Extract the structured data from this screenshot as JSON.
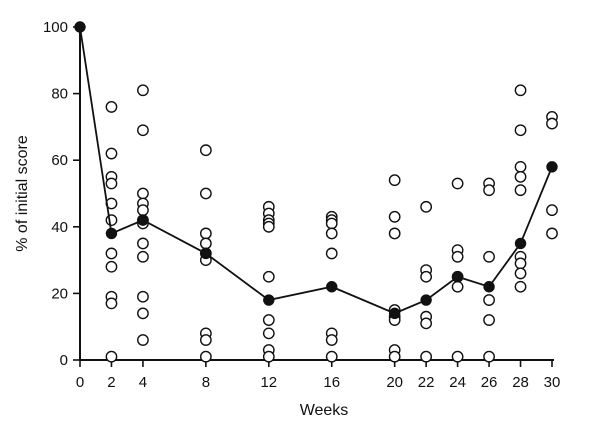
{
  "chart_data": {
    "type": "scatter",
    "xlabel": "Weeks",
    "ylabel": "% of initial score",
    "xlim": [
      0,
      30
    ],
    "ylim": [
      0,
      100
    ],
    "x_ticks": [
      0,
      2,
      4,
      8,
      12,
      16,
      20,
      22,
      24,
      26,
      28,
      30
    ],
    "y_ticks": [
      0,
      20,
      40,
      60,
      80,
      100
    ],
    "grid": false,
    "legend": "none",
    "series": [
      {
        "values": [
          {
            "x": 2,
            "y": [
              76,
              62,
              55,
              53,
              47,
              42,
              32,
              28,
              19,
              17,
              1
            ]
          },
          {
            "x": 4,
            "y": [
              81,
              69,
              50,
              47,
              45,
              42,
              41,
              35,
              31,
              19,
              14,
              6
            ]
          },
          {
            "x": 8,
            "y": [
              63,
              50,
              38,
              35,
              32,
              30,
              8,
              6,
              1
            ]
          },
          {
            "x": 12,
            "y": [
              46,
              44,
              42,
              41,
              40,
              25,
              12,
              8,
              3,
              1
            ]
          },
          {
            "x": 16,
            "y": [
              43,
              42,
              41,
              38,
              32,
              8,
              6,
              1
            ]
          },
          {
            "x": 20,
            "y": [
              54,
              43,
              38,
              15,
              13,
              12,
              3,
              1
            ]
          },
          {
            "x": 22,
            "y": [
              46,
              27,
              25,
              13,
              11,
              1
            ]
          },
          {
            "x": 24,
            "y": [
              53,
              33,
              31,
              25,
              22,
              1
            ]
          },
          {
            "x": 26,
            "y": [
              53,
              51,
              31,
              18,
              12,
              1
            ]
          },
          {
            "x": 28,
            "y": [
              81,
              69,
              58,
              55,
              51,
              31,
              29,
              26,
              22
            ]
          },
          {
            "x": 30,
            "y": [
              73,
              71,
              45,
              38
            ]
          }
        ]
      },
      {
        "values": [
          {
            "x": 0,
            "y": 100
          },
          {
            "x": 2,
            "y": 38
          },
          {
            "x": 4,
            "y": 42
          },
          {
            "x": 8,
            "y": 32
          },
          {
            "x": 12,
            "y": 18
          },
          {
            "x": 16,
            "y": 22
          },
          {
            "x": 20,
            "y": 14
          },
          {
            "x": 22,
            "y": 18
          },
          {
            "x": 24,
            "y": 25
          },
          {
            "x": 26,
            "y": 22
          },
          {
            "x": 28,
            "y": 35
          },
          {
            "x": 30,
            "y": 58
          }
        ]
      }
    ]
  }
}
